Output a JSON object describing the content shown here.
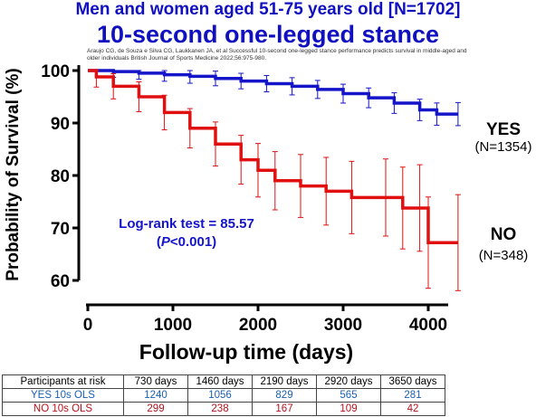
{
  "title_line1": "Men and women aged 51-75 years old [N=1702]",
  "title_line2": "10-second one-legged stance",
  "citation": "Araujo CG, de Souza e Silva CG, Laukkanen JA, et al Successful 10-second one-legged stance performance predicts survival in middle-aged and older individuals British Journal of Sports Medicine 2022;56:975-980.",
  "colors": {
    "yes": "#1414c8",
    "no": "#e01010",
    "title": "#1010c0",
    "yes_table": "#1a5fb4",
    "no_table": "#b3121b"
  },
  "annotation": {
    "line1": "Log-rank test = 85.57",
    "line2_open": "(",
    "line2_p": "P",
    "line2_rest": "<0.001)"
  },
  "chart_data": {
    "type": "line",
    "xlabel": "Follow-up time (days)",
    "ylabel": "Probability of Survival (%)",
    "xlim": [
      0,
      4500
    ],
    "ylim": [
      60,
      100
    ],
    "xticks": [
      0,
      1000,
      2000,
      3000,
      4000
    ],
    "yticks": [
      60,
      70,
      80,
      90,
      100
    ],
    "series": [
      {
        "name": "YES",
        "n_label": "(N=1354)",
        "x": [
          0,
          300,
          600,
          900,
          1200,
          1500,
          1800,
          2100,
          2400,
          2700,
          3000,
          3300,
          3600,
          3900,
          4100,
          4350
        ],
        "y": [
          100,
          99.8,
          99.5,
          99.2,
          98.9,
          98.5,
          98.0,
          97.5,
          97.0,
          96.4,
          95.6,
          94.8,
          93.8,
          92.5,
          91.7,
          91.7
        ]
      },
      {
        "name": "NO",
        "n_label": "(N=348)",
        "x": [
          0,
          100,
          300,
          600,
          900,
          1200,
          1500,
          1800,
          2000,
          2200,
          2500,
          2800,
          3100,
          3500,
          3700,
          3900,
          4000,
          4350
        ],
        "y": [
          100,
          98.8,
          97.0,
          95.0,
          92.0,
          89.0,
          86.0,
          83.0,
          81.0,
          79.0,
          78.0,
          77.0,
          75.8,
          75.8,
          73.8,
          73.8,
          67.2,
          67.2
        ]
      }
    ]
  },
  "risk_table": {
    "header": [
      "Participants at risk",
      "730 days",
      "1460 days",
      "2190 days",
      "2920 days",
      "3650 days"
    ],
    "rows": [
      {
        "label": "YES 10s OLS",
        "values": [
          "1240",
          "1056",
          "829",
          "565",
          "281"
        ]
      },
      {
        "label": "NO 10s OLS",
        "values": [
          "299",
          "238",
          "167",
          "109",
          "42"
        ]
      }
    ]
  }
}
